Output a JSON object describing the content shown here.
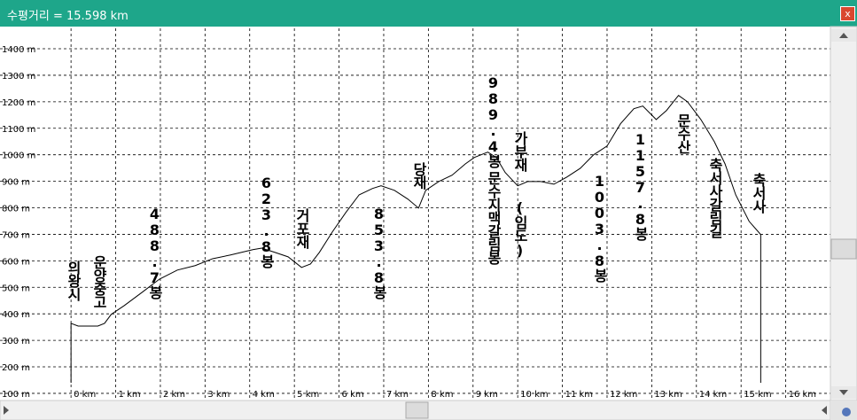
{
  "window": {
    "title": "수평거리 = 15.598 km",
    "close": "x"
  },
  "chart_data": {
    "type": "line",
    "x": [
      0,
      0,
      0.16,
      0.6,
      0.75,
      0.9,
      1.19,
      1.59,
      1.98,
      2.38,
      2.78,
      3.17,
      3.57,
      4.07,
      4.27,
      4.56,
      4.86,
      5.16,
      5.36,
      5.56,
      5.85,
      6.15,
      6.45,
      6.75,
      6.94,
      7.24,
      7.54,
      7.78,
      7.94,
      8.23,
      8.53,
      8.83,
      9.03,
      9.33,
      9.52,
      9.72,
      10.0,
      10.22,
      10.52,
      10.81,
      11.1,
      11.4,
      11.7,
      12.0,
      12.3,
      12.6,
      12.8,
      13.1,
      13.33,
      13.6,
      13.8,
      14.1,
      14.4,
      14.64,
      14.88,
      15.18,
      15.44,
      15.44
    ],
    "series": [
      {
        "color": "#000000",
        "values": [
          140,
          364,
          354,
          354,
          364,
          398,
          431,
          481,
          531,
          565,
          582,
          608,
          622,
          642,
          648,
          632,
          615,
          575,
          588,
          632,
          709,
          782,
          849,
          873,
          883,
          866,
          833,
          799,
          866,
          899,
          923,
          966,
          990,
          1010,
          990,
          933,
          883,
          899,
          899,
          889,
          916,
          949,
          1000,
          1033,
          1117,
          1174,
          1184,
          1133,
          1167,
          1224,
          1200,
          1133,
          1050,
          966,
          849,
          749,
          699,
          140
        ]
      }
    ],
    "xlim": [
      -1.59,
      17
    ],
    "ylim": [
      73,
      1477
    ],
    "xticks": [
      {
        "value": 0,
        "label": "0 km"
      },
      {
        "value": 1,
        "label": "1 km"
      },
      {
        "value": 2,
        "label": "2 km"
      },
      {
        "value": 3,
        "label": "3 km"
      },
      {
        "value": 4,
        "label": "4 km"
      },
      {
        "value": 5,
        "label": "5 km"
      },
      {
        "value": 6,
        "label": "6 km"
      },
      {
        "value": 7,
        "label": "7 km"
      },
      {
        "value": 8,
        "label": "8 km"
      },
      {
        "value": 9,
        "label": "9 km"
      },
      {
        "value": 10,
        "label": "10 km"
      },
      {
        "value": 11,
        "label": "11 km"
      },
      {
        "value": 12,
        "label": "12 km"
      },
      {
        "value": 13,
        "label": "13 km"
      },
      {
        "value": 14,
        "label": "14 km"
      },
      {
        "value": 15,
        "label": "15 km"
      },
      {
        "value": 16,
        "label": "16 km"
      }
    ],
    "yticks": [
      {
        "value": 100,
        "label": "100 m"
      },
      {
        "value": 200,
        "label": "200 m"
      },
      {
        "value": 300,
        "label": "300 m"
      },
      {
        "value": 400,
        "label": "400 m"
      },
      {
        "value": 500,
        "label": "500 m"
      },
      {
        "value": 600,
        "label": "600 m"
      },
      {
        "value": 700,
        "label": "700 m"
      },
      {
        "value": 800,
        "label": "800 m"
      },
      {
        "value": 900,
        "label": "900 m"
      },
      {
        "value": 1000,
        "label": "1000 m"
      },
      {
        "value": 1100,
        "label": "1100 m"
      },
      {
        "value": 1200,
        "label": "1200 m"
      },
      {
        "value": 1300,
        "label": "1300 m"
      },
      {
        "value": 1400,
        "label": "1400 m"
      }
    ],
    "grid": true,
    "annotations": [
      "의왕시",
      "운양중고",
      "488.7봉",
      "623.8봉",
      "거포재",
      "853.8봉",
      "당재",
      "989.4봉",
      "문수지맥갈림봉",
      "가부재",
      "(임도)",
      "1003.8봉",
      "1157.8봉",
      "문수산",
      "축서사갈림길",
      "축서사"
    ]
  }
}
